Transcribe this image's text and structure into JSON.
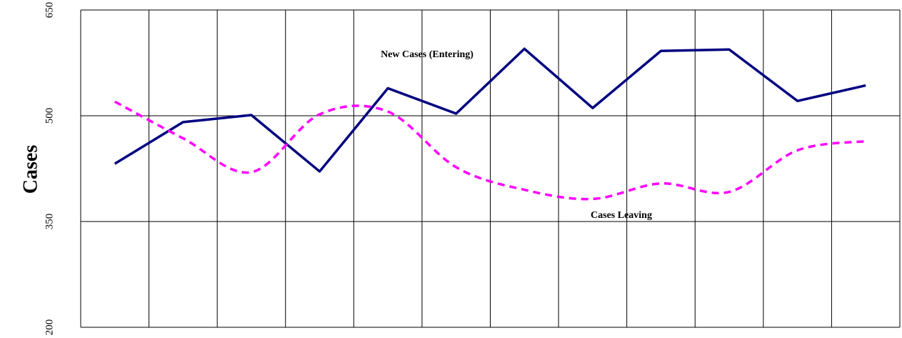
{
  "chart_data": {
    "type": "line",
    "ylabel": "Cases",
    "categories": [
      null,
      null,
      null,
      null,
      null,
      null,
      null,
      null,
      null,
      null,
      null,
      null
    ],
    "series": [
      {
        "name": "New Cases (Entering)",
        "color": "#000080",
        "dashed": false,
        "smooth": false,
        "values": [
          432,
          491,
          501,
          421,
          539,
          503,
          595,
          511,
          592,
          594,
          521,
          543
        ]
      },
      {
        "name": "Cases Leaving",
        "color": "#ff00ff",
        "dashed": true,
        "smooth": true,
        "values": [
          520,
          468,
          420,
          502,
          506,
          427,
          395,
          382,
          404,
          392,
          451,
          464
        ]
      }
    ],
    "ylim": [
      200,
      650
    ],
    "yticks": [
      200,
      350,
      500,
      650
    ],
    "grid": true
  }
}
